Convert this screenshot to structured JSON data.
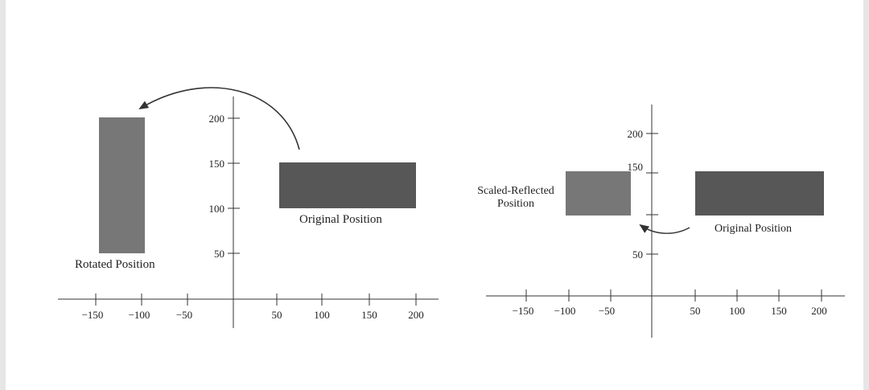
{
  "diagrams": [
    {
      "name": "rotation",
      "x_ticks": [
        "−150",
        "−100",
        "−50",
        "50",
        "100",
        "150",
        "200"
      ],
      "y_ticks": [
        "200",
        "150",
        "100",
        "50"
      ],
      "original_label": "Original Position",
      "transformed_label": "Rotated Position",
      "colors": {
        "original": "#575757",
        "transformed": "#777777"
      }
    },
    {
      "name": "scale-reflect",
      "x_ticks": [
        "−150",
        "−100",
        "−50",
        "50",
        "100",
        "150",
        "200"
      ],
      "y_ticks": [
        "200",
        "150",
        "50"
      ],
      "original_label": "Original Position",
      "transformed_label_line1": "Scaled-Reflected",
      "transformed_label_line2": "Position",
      "colors": {
        "original": "#575757",
        "transformed": "#777777"
      }
    }
  ]
}
